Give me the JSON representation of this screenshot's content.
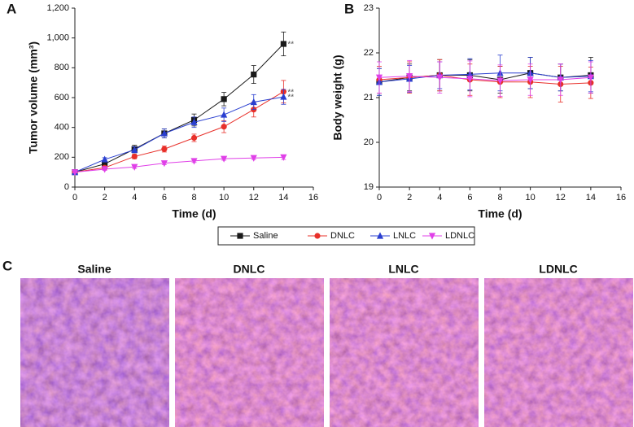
{
  "panel_labels": [
    "A",
    "B",
    "C"
  ],
  "images": [
    {
      "title": "Saline"
    },
    {
      "title": "DNLC"
    },
    {
      "title": "LNLC"
    },
    {
      "title": "LDNLC"
    }
  ],
  "chart_data": [
    {
      "type": "line",
      "xlabel": "Time (d)",
      "ylabel": "Tumor volume (mm³)",
      "x": [
        0,
        2,
        4,
        6,
        8,
        10,
        12,
        14
      ],
      "xlim": [
        0,
        16
      ],
      "xticks": [
        0,
        2,
        4,
        6,
        8,
        10,
        12,
        14,
        16
      ],
      "ylim": [
        0,
        1200
      ],
      "yticks": [
        0,
        200,
        400,
        600,
        800,
        {
          "value": 1000,
          "label": "1,000"
        },
        {
          "value": 1200,
          "label": "1,200"
        }
      ],
      "series": [
        {
          "name": "Saline",
          "color": "#1a1a1a",
          "marker": "square",
          "values": [
            100,
            155,
            255,
            360,
            450,
            590,
            755,
            960
          ],
          "errors": [
            10,
            15,
            25,
            30,
            40,
            45,
            60,
            80
          ],
          "annotation": "**"
        },
        {
          "name": "DNLC",
          "color": "#e8302a",
          "marker": "circle",
          "values": [
            100,
            130,
            205,
            255,
            330,
            405,
            520,
            640
          ],
          "errors": [
            10,
            10,
            15,
            20,
            25,
            40,
            50,
            75
          ],
          "annotation": "**"
        },
        {
          "name": "LNLC",
          "color": "#2a3fd0",
          "marker": "triangle-up",
          "values": [
            100,
            185,
            250,
            360,
            435,
            485,
            570,
            605
          ],
          "errors": [
            10,
            12,
            20,
            30,
            35,
            45,
            50,
            50
          ],
          "annotation": "**"
        },
        {
          "name": "LDNLC",
          "color": "#e040e8",
          "marker": "triangle-down",
          "values": [
            100,
            120,
            135,
            160,
            175,
            190,
            195,
            200
          ],
          "errors": [
            5,
            8,
            10,
            10,
            10,
            10,
            10,
            15
          ]
        }
      ]
    },
    {
      "type": "line",
      "xlabel": "Time (d)",
      "ylabel": "Body weight (g)",
      "x": [
        0,
        2,
        4,
        6,
        8,
        10,
        12,
        14
      ],
      "xlim": [
        0,
        16
      ],
      "xticks": [
        0,
        2,
        4,
        6,
        8,
        10,
        12,
        14,
        16
      ],
      "ylim": [
        19,
        23
      ],
      "yticks": [
        19,
        20,
        21,
        22,
        23
      ],
      "series": [
        {
          "color": "#1a1a1a",
          "marker": "square",
          "values": [
            21.35,
            21.45,
            21.5,
            21.5,
            21.4,
            21.55,
            21.45,
            21.5
          ],
          "errors": [
            0.3,
            0.3,
            0.35,
            0.35,
            0.3,
            0.35,
            0.3,
            0.4
          ]
        },
        {
          "color": "#e8302a",
          "marker": "circle",
          "values": [
            21.4,
            21.45,
            21.5,
            21.4,
            21.35,
            21.35,
            21.3,
            21.33
          ],
          "errors": [
            0.3,
            0.35,
            0.35,
            0.35,
            0.35,
            0.35,
            0.4,
            0.35
          ]
        },
        {
          "color": "#2a3fd0",
          "marker": "triangle-up",
          "values": [
            21.35,
            21.42,
            21.5,
            21.52,
            21.55,
            21.55,
            21.45,
            21.48
          ],
          "errors": [
            0.3,
            0.3,
            0.3,
            0.35,
            0.4,
            0.35,
            0.3,
            0.35
          ]
        },
        {
          "color": "#e040e8",
          "marker": "triangle-down",
          "values": [
            21.45,
            21.48,
            21.45,
            21.42,
            21.38,
            21.4,
            21.4,
            21.45
          ],
          "errors": [
            0.35,
            0.35,
            0.35,
            0.4,
            0.35,
            0.35,
            0.35,
            0.35
          ]
        }
      ]
    }
  ]
}
